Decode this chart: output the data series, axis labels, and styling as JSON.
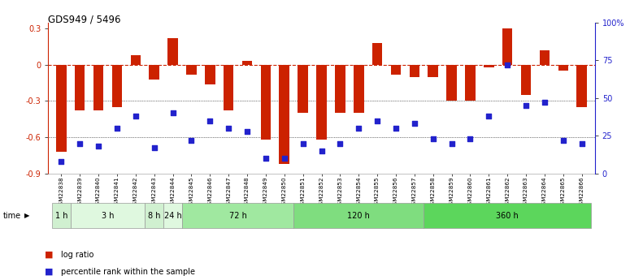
{
  "title": "GDS949 / 5496",
  "samples": [
    "GSM22838",
    "GSM22839",
    "GSM22840",
    "GSM22841",
    "GSM22842",
    "GSM22843",
    "GSM22844",
    "GSM22845",
    "GSM22846",
    "GSM22847",
    "GSM22848",
    "GSM22849",
    "GSM22850",
    "GSM22851",
    "GSM22852",
    "GSM22853",
    "GSM22854",
    "GSM22855",
    "GSM22856",
    "GSM22857",
    "GSM22858",
    "GSM22859",
    "GSM22860",
    "GSM22861",
    "GSM22862",
    "GSM22863",
    "GSM22864",
    "GSM22865",
    "GSM22866"
  ],
  "log_ratio": [
    -0.72,
    -0.38,
    -0.38,
    -0.35,
    0.08,
    -0.12,
    0.22,
    -0.08,
    -0.16,
    -0.38,
    0.03,
    -0.62,
    -0.82,
    -0.4,
    -0.62,
    -0.4,
    -0.4,
    0.18,
    -0.08,
    -0.1,
    -0.1,
    -0.3,
    -0.3,
    -0.02,
    0.3,
    -0.25,
    0.12,
    -0.05,
    -0.35
  ],
  "percentile_rank": [
    8,
    20,
    18,
    30,
    38,
    17,
    40,
    22,
    35,
    30,
    28,
    10,
    10,
    20,
    15,
    20,
    30,
    35,
    30,
    33,
    23,
    20,
    23,
    38,
    72,
    45,
    47,
    22,
    20
  ],
  "time_groups": [
    {
      "label": "1 h",
      "start": 0,
      "end": 1,
      "color": "#d0f0d0"
    },
    {
      "label": "3 h",
      "start": 1,
      "end": 5,
      "color": "#dff8df"
    },
    {
      "label": "8 h",
      "start": 5,
      "end": 6,
      "color": "#d0f0d0"
    },
    {
      "label": "24 h",
      "start": 6,
      "end": 7,
      "color": "#dff8df"
    },
    {
      "label": "72 h",
      "start": 7,
      "end": 13,
      "color": "#a0e8a0"
    },
    {
      "label": "120 h",
      "start": 13,
      "end": 20,
      "color": "#7fdd7f"
    },
    {
      "label": "360 h",
      "start": 20,
      "end": 29,
      "color": "#5cd65c"
    }
  ],
  "bar_color": "#cc2200",
  "dot_color": "#2222cc",
  "zero_line_color": "#cc2200",
  "grid_color": "#555555",
  "ylim_left": [
    -0.9,
    0.35
  ],
  "ylim_right": [
    0,
    100
  ],
  "yticks_left": [
    -0.9,
    -0.6,
    -0.3,
    0.0,
    0.3
  ],
  "yticks_right": [
    0,
    25,
    50,
    75,
    100
  ],
  "ytick_labels_right": [
    "0",
    "25",
    "50",
    "75",
    "100%"
  ]
}
